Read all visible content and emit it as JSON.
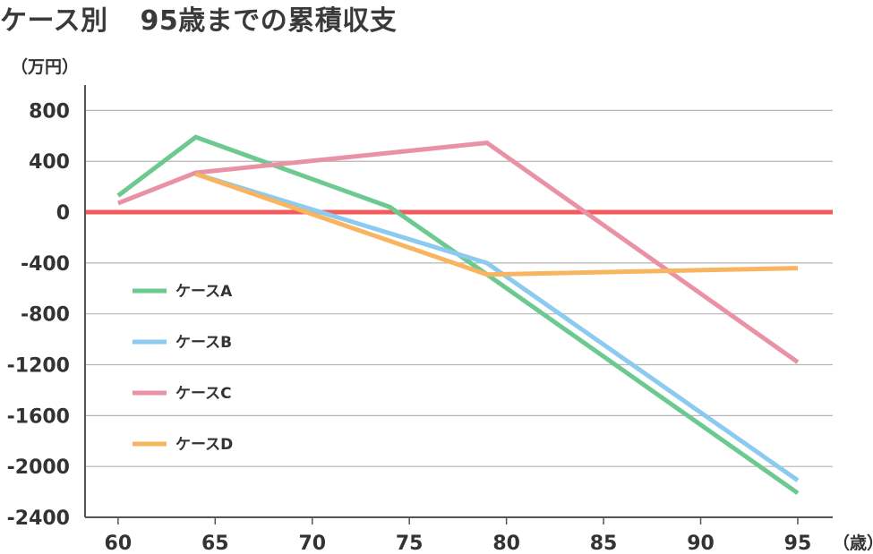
{
  "title": {
    "part1": "ケース別",
    "part2": "95歳までの累積収支"
  },
  "y_unit": "（万円）",
  "x_unit": "（歳）",
  "chart_data": {
    "type": "line",
    "title": "ケース別　95歳までの累積収支",
    "ylabel": "（万円）",
    "xlabel": "（歳）",
    "xlim": [
      58.3,
      96.8
    ],
    "ylim": [
      -2400,
      1000
    ],
    "x_ticks": [
      60,
      65,
      70,
      75,
      80,
      85,
      90,
      95
    ],
    "y_ticks": [
      800,
      400,
      0,
      -400,
      -800,
      -1200,
      -1600,
      -2000,
      -2400
    ],
    "grid": true,
    "legend_position": "left-middle",
    "zero_line_color": "#f25c5c",
    "series": [
      {
        "name": "ケースA",
        "color": "#6cc98f",
        "points": [
          [
            60,
            130
          ],
          [
            64,
            590
          ],
          [
            74,
            40
          ],
          [
            79,
            -490
          ],
          [
            95,
            -2210
          ]
        ]
      },
      {
        "name": "ケースB",
        "color": "#8ccbef",
        "points": [
          [
            64,
            300
          ],
          [
            70,
            20
          ],
          [
            79,
            -400
          ],
          [
            95,
            -2110
          ]
        ]
      },
      {
        "name": "ケースC",
        "color": "#e992a6",
        "points": [
          [
            60,
            70
          ],
          [
            64,
            310
          ],
          [
            79,
            545
          ],
          [
            95,
            -1180
          ]
        ]
      },
      {
        "name": "ケースD",
        "color": "#f8b45f",
        "points": [
          [
            64,
            300
          ],
          [
            79,
            -490
          ],
          [
            95,
            -440
          ]
        ]
      }
    ]
  }
}
